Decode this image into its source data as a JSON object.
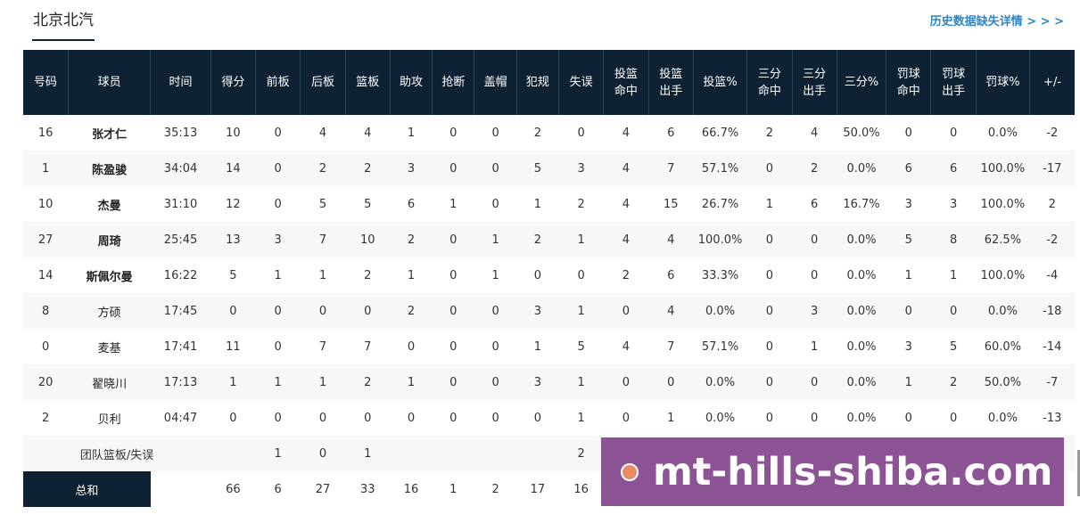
{
  "team": {
    "tab_label": "北京北汽"
  },
  "history_link": {
    "label": "历史数据缺失详情 > > >"
  },
  "table": {
    "columns": [
      "号码",
      "球员",
      "时间",
      "得分",
      "前板",
      "后板",
      "篮板",
      "助攻",
      "抢断",
      "盖帽",
      "犯规",
      "失误",
      "投篮\n命中",
      "投篮\n出手",
      "投篮%",
      "三分\n命中",
      "三分\n出手",
      "三分%",
      "罚球\n命中",
      "罚球\n出手",
      "罚球%",
      "+/-"
    ],
    "players": [
      {
        "number": "16",
        "name": "张才仁",
        "starter": true,
        "time": "35:13",
        "pts": "10",
        "oreb": "0",
        "dreb": "4",
        "reb": "4",
        "ast": "1",
        "stl": "0",
        "blk": "0",
        "pf": "2",
        "tov": "0",
        "fgm": "4",
        "fga": "6",
        "fg_pct": "66.7%",
        "tpm": "2",
        "tpa": "4",
        "tp_pct": "50.0%",
        "ftm": "0",
        "fta": "0",
        "ft_pct": "0.0%",
        "plus_minus": "-2"
      },
      {
        "number": "1",
        "name": "陈盈骏",
        "starter": true,
        "time": "34:04",
        "pts": "14",
        "oreb": "0",
        "dreb": "2",
        "reb": "2",
        "ast": "3",
        "stl": "0",
        "blk": "0",
        "pf": "5",
        "tov": "3",
        "fgm": "4",
        "fga": "7",
        "fg_pct": "57.1%",
        "tpm": "0",
        "tpa": "2",
        "tp_pct": "0.0%",
        "ftm": "6",
        "fta": "6",
        "ft_pct": "100.0%",
        "plus_minus": "-17"
      },
      {
        "number": "10",
        "name": "杰曼",
        "starter": true,
        "time": "31:10",
        "pts": "12",
        "oreb": "0",
        "dreb": "5",
        "reb": "5",
        "ast": "6",
        "stl": "1",
        "blk": "0",
        "pf": "1",
        "tov": "2",
        "fgm": "4",
        "fga": "15",
        "fg_pct": "26.7%",
        "tpm": "1",
        "tpa": "6",
        "tp_pct": "16.7%",
        "ftm": "3",
        "fta": "3",
        "ft_pct": "100.0%",
        "plus_minus": "2"
      },
      {
        "number": "27",
        "name": "周琦",
        "starter": true,
        "time": "25:45",
        "pts": "13",
        "oreb": "3",
        "dreb": "7",
        "reb": "10",
        "ast": "2",
        "stl": "0",
        "blk": "1",
        "pf": "2",
        "tov": "1",
        "fgm": "4",
        "fga": "4",
        "fg_pct": "100.0%",
        "tpm": "0",
        "tpa": "0",
        "tp_pct": "0.0%",
        "ftm": "5",
        "fta": "8",
        "ft_pct": "62.5%",
        "plus_minus": "-2"
      },
      {
        "number": "14",
        "name": "斯佩尔曼",
        "starter": true,
        "time": "16:22",
        "pts": "5",
        "oreb": "1",
        "dreb": "1",
        "reb": "2",
        "ast": "1",
        "stl": "0",
        "blk": "1",
        "pf": "0",
        "tov": "0",
        "fgm": "2",
        "fga": "6",
        "fg_pct": "33.3%",
        "tpm": "0",
        "tpa": "0",
        "tp_pct": "0.0%",
        "ftm": "1",
        "fta": "1",
        "ft_pct": "100.0%",
        "plus_minus": "-4"
      },
      {
        "number": "8",
        "name": "方硕",
        "starter": false,
        "time": "17:45",
        "pts": "0",
        "oreb": "0",
        "dreb": "0",
        "reb": "0",
        "ast": "2",
        "stl": "0",
        "blk": "0",
        "pf": "3",
        "tov": "1",
        "fgm": "0",
        "fga": "4",
        "fg_pct": "0.0%",
        "tpm": "0",
        "tpa": "3",
        "tp_pct": "0.0%",
        "ftm": "0",
        "fta": "0",
        "ft_pct": "0.0%",
        "plus_minus": "-18"
      },
      {
        "number": "0",
        "name": "麦基",
        "starter": false,
        "time": "17:41",
        "pts": "11",
        "oreb": "0",
        "dreb": "7",
        "reb": "7",
        "ast": "0",
        "stl": "0",
        "blk": "0",
        "pf": "1",
        "tov": "5",
        "fgm": "4",
        "fga": "7",
        "fg_pct": "57.1%",
        "tpm": "0",
        "tpa": "1",
        "tp_pct": "0.0%",
        "ftm": "3",
        "fta": "5",
        "ft_pct": "60.0%",
        "plus_minus": "-14"
      },
      {
        "number": "20",
        "name": "翟晓川",
        "starter": false,
        "time": "17:13",
        "pts": "1",
        "oreb": "1",
        "dreb": "1",
        "reb": "2",
        "ast": "1",
        "stl": "0",
        "blk": "0",
        "pf": "3",
        "tov": "1",
        "fgm": "0",
        "fga": "0",
        "fg_pct": "0.0%",
        "tpm": "0",
        "tpa": "0",
        "tp_pct": "0.0%",
        "ftm": "1",
        "fta": "2",
        "ft_pct": "50.0%",
        "plus_minus": "-7"
      },
      {
        "number": "2",
        "name": "贝利",
        "starter": false,
        "time": "04:47",
        "pts": "0",
        "oreb": "0",
        "dreb": "0",
        "reb": "0",
        "ast": "0",
        "stl": "0",
        "blk": "0",
        "pf": "0",
        "tov": "1",
        "fgm": "0",
        "fga": "1",
        "fg_pct": "0.0%",
        "tpm": "0",
        "tpa": "0",
        "tp_pct": "0.0%",
        "ftm": "0",
        "fta": "0",
        "ft_pct": "0.0%",
        "plus_minus": "-13"
      }
    ],
    "team_row": {
      "label": "团队篮板/失误",
      "oreb": "1",
      "dreb": "0",
      "reb": "1",
      "tov": "2"
    },
    "total_row": {
      "label": "总和",
      "pts": "66",
      "oreb": "6",
      "dreb": "27",
      "reb": "33",
      "ast": "16",
      "stl": "1",
      "blk": "2",
      "pf": "17",
      "tov": "16"
    }
  },
  "watermark": {
    "text": "mt-hills-shiba.com"
  }
}
